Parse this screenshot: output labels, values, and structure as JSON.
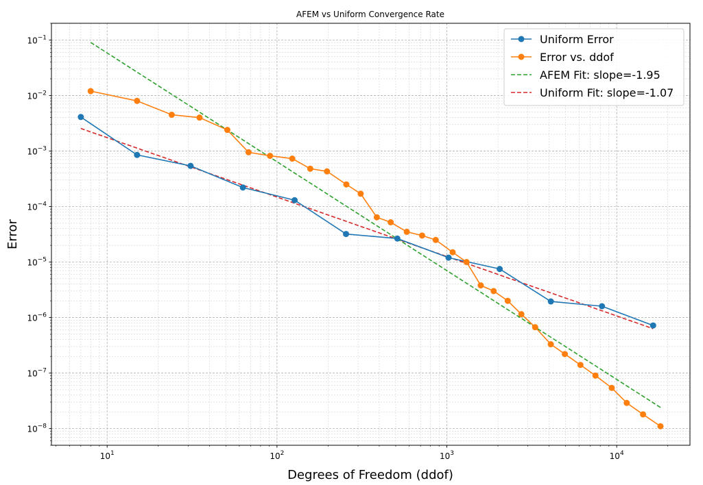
{
  "chart_data": {
    "type": "line",
    "title": "AFEM vs Uniform Convergence Rate",
    "xlabel": "Degrees of Freedom (ddof)",
    "ylabel": "Error",
    "xscale": "log",
    "yscale": "log",
    "xlim": [
      4.7,
      27000
    ],
    "ylim": [
      5e-09,
      0.2
    ],
    "grid": "both",
    "legend_position": "upper right",
    "x_tick_labels": [
      {
        "value": 10,
        "base": "10",
        "exp": "1"
      },
      {
        "value": 100,
        "base": "10",
        "exp": "2"
      },
      {
        "value": 1000,
        "base": "10",
        "exp": "3"
      },
      {
        "value": 10000,
        "base": "10",
        "exp": "4"
      }
    ],
    "y_tick_labels": [
      {
        "value": 1e-08,
        "base": "10",
        "exp": "−8"
      },
      {
        "value": 1e-07,
        "base": "10",
        "exp": "−7"
      },
      {
        "value": 1e-06,
        "base": "10",
        "exp": "−6"
      },
      {
        "value": 1e-05,
        "base": "10",
        "exp": "−5"
      },
      {
        "value": 0.0001,
        "base": "10",
        "exp": "−4"
      },
      {
        "value": 0.001,
        "base": "10",
        "exp": "−3"
      },
      {
        "value": 0.01,
        "base": "10",
        "exp": "−2"
      },
      {
        "value": 0.1,
        "base": "10",
        "exp": "−1"
      }
    ],
    "series": [
      {
        "name": "Uniform Error",
        "color": "#1f77b4",
        "style": "solid-marker",
        "x": [
          7,
          15,
          31,
          63,
          127,
          255,
          511,
          1023,
          2047,
          4095,
          8191,
          16383
        ],
        "y": [
          0.0041,
          0.00085,
          0.00054,
          0.00022,
          0.00013,
          3.2e-05,
          2.65e-05,
          1.2e-05,
          7.5e-06,
          1.95e-06,
          1.6e-06,
          7.2e-07
        ]
      },
      {
        "name": "Error vs. ddof",
        "color": "#ff7f0e",
        "style": "solid-marker",
        "x": [
          8,
          15,
          24,
          35,
          51,
          68,
          91,
          123,
          157,
          197,
          256,
          311,
          387,
          467,
          581,
          715,
          860,
          1082,
          1306,
          1583,
          1886,
          2283,
          2745,
          3311,
          4093,
          4952,
          6117,
          7500,
          9349,
          11457,
          14289,
          18100
        ],
        "y": [
          0.012,
          0.008,
          0.0045,
          0.004,
          0.0024,
          0.00095,
          0.00082,
          0.00073,
          0.00048,
          0.00043,
          0.00025,
          0.00017,
          6.4e-05,
          5.2e-05,
          3.5e-05,
          3e-05,
          2.5e-05,
          1.5e-05,
          1e-05,
          3.8e-06,
          3e-06,
          2e-06,
          1.15e-06,
          6.7e-07,
          3.3e-07,
          2.2e-07,
          1.4e-07,
          9e-08,
          5.4e-08,
          2.9e-08,
          1.8e-08,
          1.1e-08
        ]
      },
      {
        "name": "AFEM Fit: slope=-1.95",
        "color": "#2ca02c",
        "style": "dashed",
        "x": [
          8,
          18100
        ],
        "y": [
          0.0905,
          2.4e-08
        ]
      },
      {
        "name": "Uniform Fit: slope=-1.07",
        "color": "#d62728",
        "style": "dashed",
        "x": [
          7,
          16383
        ],
        "y": [
          0.00255,
          6.3e-07
        ]
      }
    ]
  }
}
